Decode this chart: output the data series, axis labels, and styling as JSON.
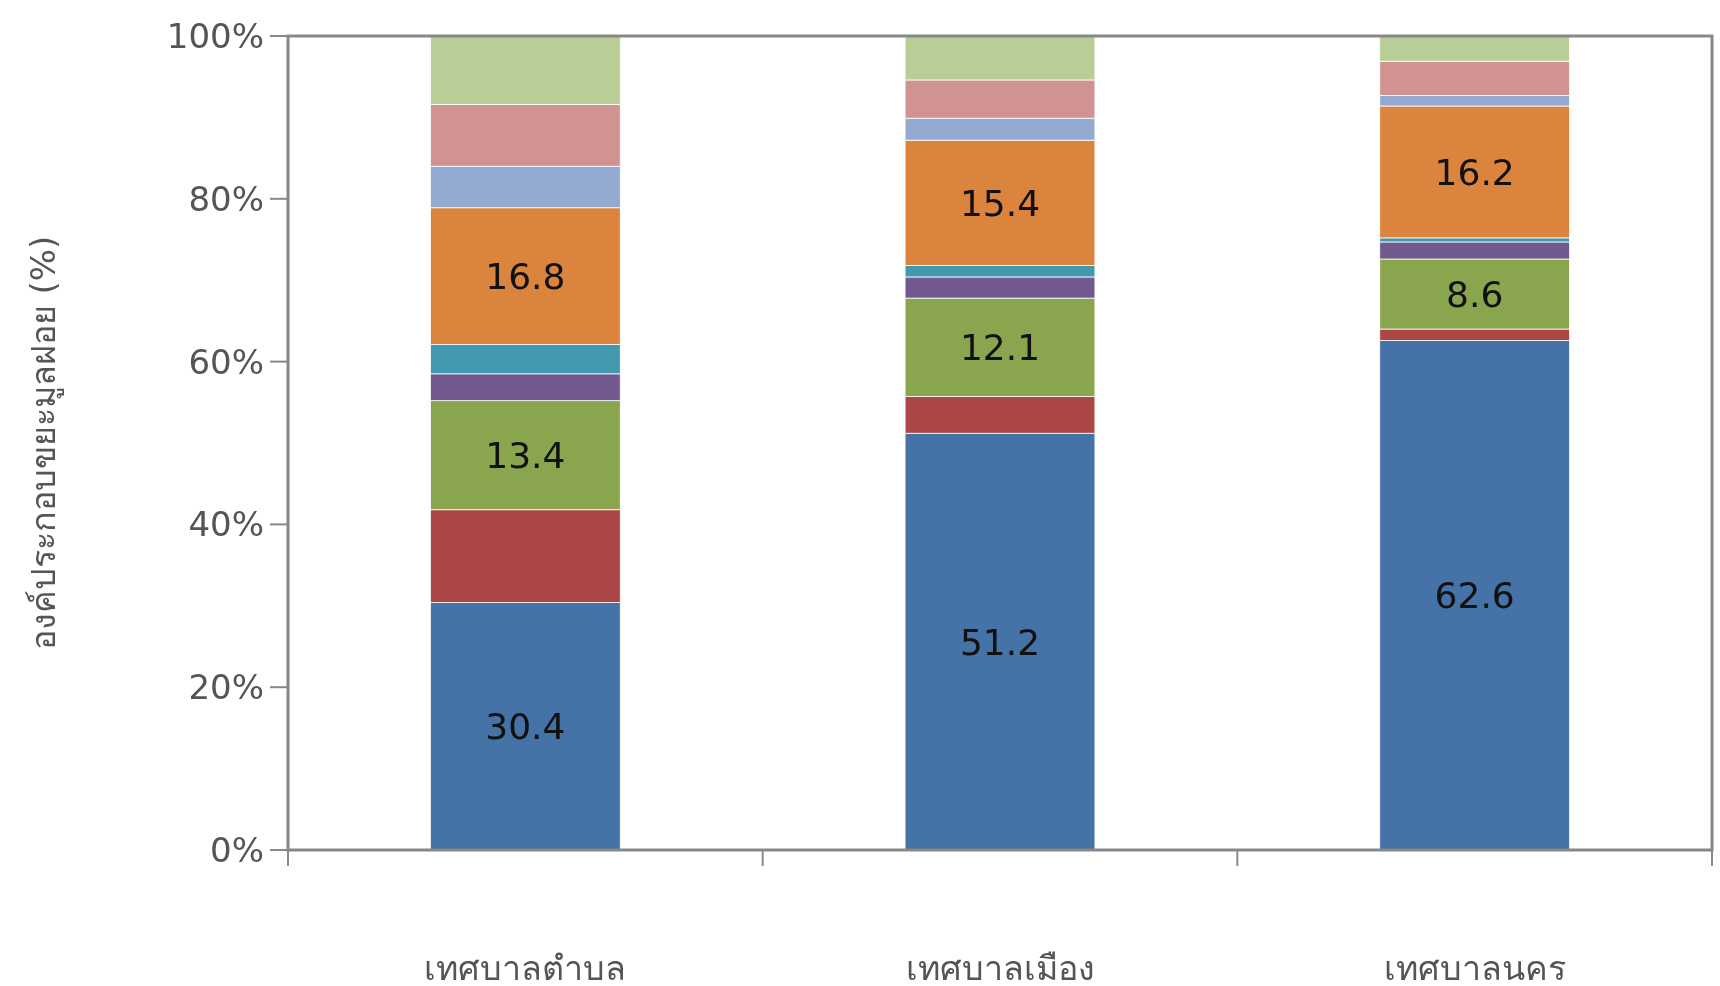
{
  "chart_data": {
    "type": "bar",
    "stacked": true,
    "ylabel": "องค์ประกอบขยะมูลฝอย (%)",
    "categories": [
      "เทศบาลตำบล",
      "เทศบาลเมือง",
      "เทศบาลนคร"
    ],
    "series": [
      {
        "color": "#4572a7",
        "values": [
          30.4,
          51.2,
          62.6
        ],
        "value_labels": [
          "30.4",
          "51.2",
          "62.6"
        ]
      },
      {
        "color": "#aa4643",
        "values": [
          11.4,
          4.5,
          1.4
        ]
      },
      {
        "color": "#89a54e",
        "values": [
          13.4,
          12.1,
          8.6
        ],
        "value_labels": [
          "13.4",
          "12.1",
          "8.6"
        ]
      },
      {
        "color": "#71588f",
        "values": [
          3.3,
          2.6,
          2.1
        ]
      },
      {
        "color": "#4198af",
        "values": [
          3.6,
          1.4,
          0.5
        ]
      },
      {
        "color": "#db843d",
        "values": [
          16.8,
          15.4,
          16.2
        ],
        "value_labels": [
          "16.8",
          "15.4",
          "16.2"
        ]
      },
      {
        "color": "#93a9cf",
        "values": [
          5.1,
          2.7,
          1.3
        ]
      },
      {
        "color": "#d19392",
        "values": [
          7.6,
          4.7,
          4.2
        ]
      },
      {
        "color": "#b9cd96",
        "values": [
          8.4,
          5.4,
          3.1
        ]
      }
    ],
    "ylim": [
      0,
      100
    ],
    "yticks": [
      {
        "value": 0,
        "label": "0%"
      },
      {
        "value": 20,
        "label": "20%"
      },
      {
        "value": 40,
        "label": "40%"
      },
      {
        "value": 60,
        "label": "60%"
      },
      {
        "value": 80,
        "label": "80%"
      },
      {
        "value": 100,
        "label": "100%"
      }
    ],
    "grid": false
  }
}
